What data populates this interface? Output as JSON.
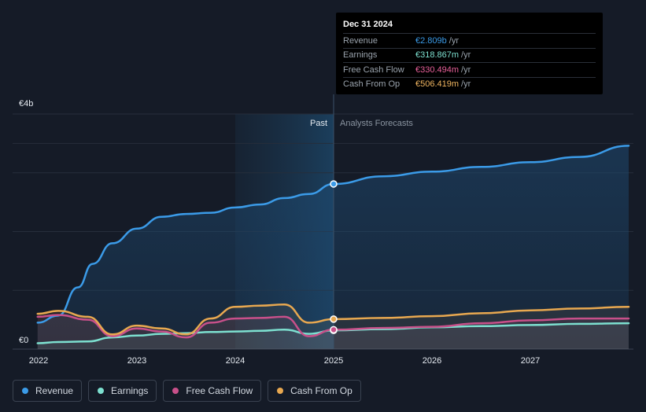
{
  "tooltip": {
    "date": "Dec 31 2024",
    "rows": [
      {
        "label": "Revenue",
        "value": "€2.809b",
        "unit": "/yr",
        "color": "#3b9be8"
      },
      {
        "label": "Earnings",
        "value": "€318.867m",
        "unit": "/yr",
        "color": "#7de0d0"
      },
      {
        "label": "Free Cash Flow",
        "value": "€330.494m",
        "unit": "/yr",
        "color": "#e8609a"
      },
      {
        "label": "Cash From Op",
        "value": "€506.419m",
        "unit": "/yr",
        "color": "#f0b560"
      }
    ]
  },
  "legend": [
    {
      "label": "Revenue",
      "color": "#3b9be8"
    },
    {
      "label": "Earnings",
      "color": "#7de0d0"
    },
    {
      "label": "Free Cash Flow",
      "color": "#c8508a"
    },
    {
      "label": "Cash From Op",
      "color": "#e8a850"
    }
  ],
  "chart_data": {
    "type": "line",
    "title": "",
    "xlabel": "",
    "ylabel": "",
    "ylim": [
      0,
      4
    ],
    "y_unit": "€b",
    "y_tick_labels": [
      "€4b",
      "€0"
    ],
    "y_ticks": [
      4,
      0
    ],
    "gridlines": [
      0,
      1,
      2,
      3,
      3.5,
      4
    ],
    "xlim": [
      2022.0,
      2028.0
    ],
    "x_ticks": [
      2022,
      2023,
      2024,
      2025,
      2026,
      2027
    ],
    "x_tick_labels": [
      "2022",
      "2023",
      "2024",
      "2025",
      "2026",
      "2027"
    ],
    "past_label": "Past",
    "forecast_label": "Analysts Forecasts",
    "divider_x": 2025.0,
    "past_highlight_start": 2024.0,
    "highlight_x": 2025.0,
    "series": [
      {
        "name": "Revenue",
        "color": "#3b9be8",
        "fill": true,
        "x": [
          2021.99,
          2022.2,
          2022.4,
          2022.55,
          2022.75,
          2023.0,
          2023.25,
          2023.5,
          2023.75,
          2024.0,
          2024.25,
          2024.5,
          2024.75,
          2025.0,
          2025.5,
          2026.0,
          2026.5,
          2027.0,
          2027.5,
          2028.0
        ],
        "values": [
          0.45,
          0.57,
          1.05,
          1.45,
          1.8,
          2.05,
          2.25,
          2.3,
          2.32,
          2.41,
          2.46,
          2.57,
          2.64,
          2.81,
          2.94,
          3.02,
          3.1,
          3.18,
          3.27,
          3.46
        ]
      },
      {
        "name": "Earnings",
        "color": "#7de0d0",
        "fill": false,
        "x": [
          2021.99,
          2022.2,
          2022.5,
          2022.75,
          2023.0,
          2023.25,
          2023.5,
          2023.75,
          2024.0,
          2024.25,
          2024.5,
          2024.75,
          2025.0,
          2025.5,
          2026.0,
          2026.5,
          2027.0,
          2027.5,
          2028.0
        ],
        "values": [
          0.1,
          0.12,
          0.13,
          0.2,
          0.23,
          0.26,
          0.27,
          0.29,
          0.3,
          0.31,
          0.33,
          0.26,
          0.32,
          0.34,
          0.37,
          0.39,
          0.41,
          0.43,
          0.44
        ]
      },
      {
        "name": "Free Cash Flow",
        "color": "#c8508a",
        "fill": false,
        "x": [
          2021.99,
          2022.2,
          2022.5,
          2022.75,
          2023.0,
          2023.25,
          2023.5,
          2023.75,
          2024.0,
          2024.25,
          2024.5,
          2024.75,
          2025.0,
          2025.5,
          2026.0,
          2026.5,
          2027.0,
          2027.5,
          2028.0
        ],
        "values": [
          0.55,
          0.58,
          0.5,
          0.22,
          0.35,
          0.3,
          0.2,
          0.45,
          0.52,
          0.53,
          0.55,
          0.22,
          0.33,
          0.36,
          0.38,
          0.44,
          0.49,
          0.52,
          0.52
        ]
      },
      {
        "name": "Cash From Op",
        "color": "#e8a850",
        "fill": false,
        "x": [
          2021.99,
          2022.2,
          2022.5,
          2022.75,
          2023.0,
          2023.25,
          2023.5,
          2023.75,
          2024.0,
          2024.25,
          2024.5,
          2024.75,
          2025.0,
          2025.5,
          2026.0,
          2026.5,
          2027.0,
          2027.5,
          2028.0
        ],
        "values": [
          0.6,
          0.65,
          0.55,
          0.25,
          0.4,
          0.35,
          0.25,
          0.52,
          0.72,
          0.74,
          0.76,
          0.45,
          0.51,
          0.53,
          0.56,
          0.61,
          0.66,
          0.69,
          0.72
        ]
      }
    ]
  }
}
